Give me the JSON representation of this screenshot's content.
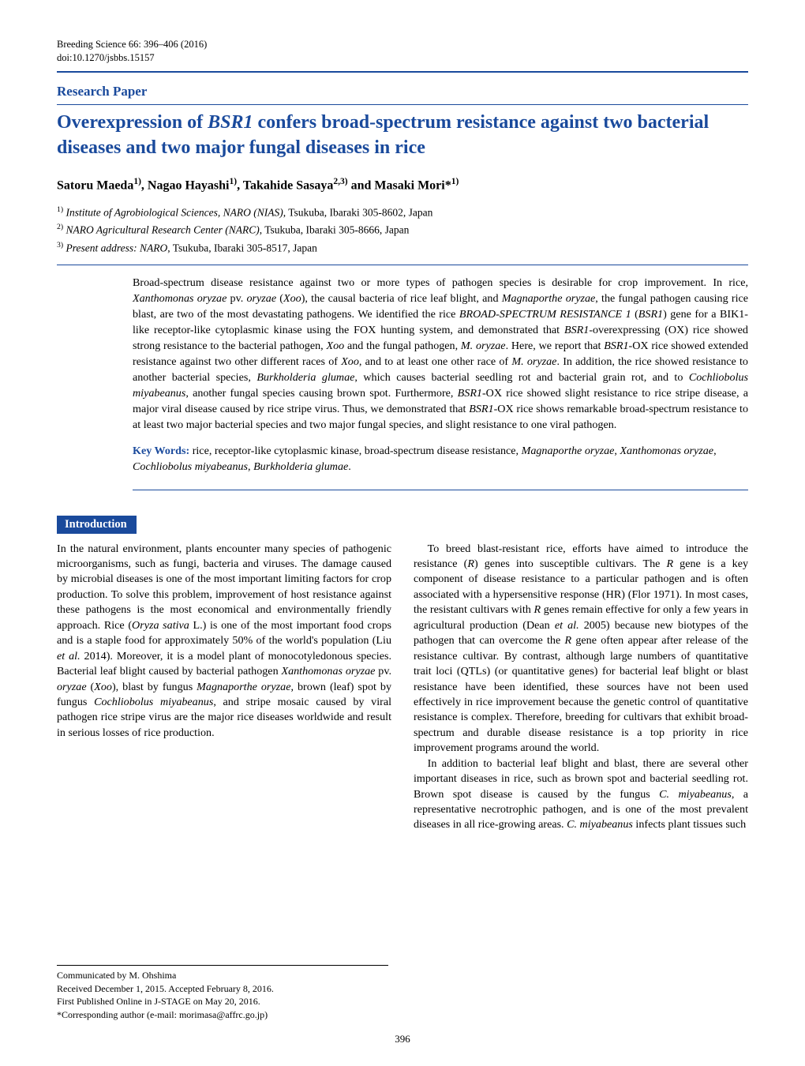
{
  "journal": {
    "line1": "Breeding Science 66: 396–406 (2016)",
    "line2": "doi:10.1270/jsbbs.15157"
  },
  "colors": {
    "accent": "#1a4a9c",
    "text": "#000000",
    "bg": "#ffffff"
  },
  "section_label": "Research Paper",
  "title": "Overexpression of <span class='ital'>BSR1</span> confers broad-spectrum resistance against two bacterial diseases and two major fungal diseases in rice",
  "authors_html": "Satoru Maeda<span class='sup'>1)</span>, Nagao Hayashi<span class='sup'>1)</span>, Takahide Sasaya<span class='sup'>2,3)</span> and Masaki Mori*<span class='sup'>1)</span>",
  "affiliations": [
    {
      "num": "1)",
      "italic": "Institute of Agrobiological Sciences, NARO (NIAS)",
      "plain": ", Tsukuba, Ibaraki 305-8602, Japan"
    },
    {
      "num": "2)",
      "italic": "NARO Agricultural Research Center (NARC)",
      "plain": ", Tsukuba, Ibaraki 305-8666, Japan"
    },
    {
      "num": "3)",
      "italic": "Present address: NARO",
      "plain": ", Tsukuba, Ibaraki 305-8517, Japan"
    }
  ],
  "abstract_html": "Broad-spectrum disease resistance against two or more types of pathogen species is desirable for crop improvement. In rice, <span class='ital'>Xanthomonas oryzae</span> pv. <span class='ital'>oryzae</span> (<span class='ital'>Xoo</span>), the causal bacteria of rice leaf blight, and <span class='ital'>Magnaporthe oryzae</span>, the fungal pathogen causing rice blast, are two of the most devastating pathogens. We identified the rice <span class='ital'>BROAD-SPECTRUM RESISTANCE 1</span> (<span class='ital'>BSR1</span>) gene for a BIK1-like receptor-like cytoplasmic kinase using the FOX hunting system, and demonstrated that <span class='ital'>BSR1</span>-overexpressing (OX) rice showed strong resistance to the bacterial pathogen, <span class='ital'>Xoo</span> and the fungal pathogen, <span class='ital'>M. oryzae</span>. Here, we report that <span class='ital'>BSR1</span>-OX rice showed extended resistance against two other different races of <span class='ital'>Xoo</span>, and to at least one other race of <span class='ital'>M. oryzae</span>. In addition, the rice showed resistance to another bacterial species, <span class='ital'>Burkholderia glumae</span>, which causes bacterial seedling rot and bacterial grain rot, and to <span class='ital'>Cochliobolus miyabeanus</span>, another fungal species causing brown spot. Furthermore, <span class='ital'>BSR1</span>-OX rice showed slight resistance to rice stripe disease, a major viral disease caused by rice stripe virus. Thus, we demonstrated that <span class='ital'>BSR1</span>-OX rice shows remarkable broad-spectrum resistance to at least two major bacterial species and two major fungal species, and slight resistance to one viral pathogen.",
  "keywords_label": "Key Words:",
  "keywords_html": "rice, receptor-like cytoplasmic kinase, broad-spectrum disease resistance, <span class='ital'>Magnaporthe oryzae</span>, <span class='ital'>Xanthomonas oryzae</span>, <span class='ital'>Cochliobolus miyabeanus</span>, <span class='ital'>Burkholderia glumae</span>.",
  "intro_heading": "Introduction",
  "cols": {
    "left": [
      "In the natural environment, plants encounter many species of pathogenic microorganisms, such as fungi, bacteria and viruses. The damage caused by microbial diseases is one of the most important limiting factors for crop production. To solve this problem, improvement of host resistance against these pathogens is the most economical and environmentally friendly approach. Rice (<span class='ital'>Oryza sativa</span> L.) is one of the most important food crops and is a staple food for approximately 50% of the world's population (Liu <span class='ital'>et al.</span> 2014). Moreover, it is a model plant of monocotyledonous species. Bacterial leaf blight caused by bacterial pathogen <span class='ital'>Xanthomonas oryzae</span> pv. <span class='ital'>oryzae</span> (<span class='ital'>Xoo</span>), blast by fungus <span class='ital'>Magnaporthe oryzae</span>, brown (leaf) spot by fungus <span class='ital'>Cochliobolus miyabeanus</span>, and stripe mosaic caused by viral pathogen rice stripe virus are the major rice diseases worldwide and result in serious losses of rice production."
    ],
    "right": [
      "To breed blast-resistant rice, efforts have aimed to introduce the resistance (<span class='ital'>R</span>) genes into susceptible cultivars. The <span class='ital'>R</span> gene is a key component of disease resistance to a particular pathogen and is often associated with a hypersensitive response (HR) (Flor 1971). In most cases, the resistant cultivars with <span class='ital'>R</span> genes remain effective for only a few years in agricultural production (Dean <span class='ital'>et al.</span> 2005) because new biotypes of the pathogen that can overcome the <span class='ital'>R</span> gene often appear after release of the resistance cultivar. By contrast, although large numbers of quantitative trait loci (QTLs) (or quantitative genes) for bacterial leaf blight or blast resistance have been identified, these sources have not been used effectively in rice improvement because the genetic control of quantitative resistance is complex. Therefore, breeding for cultivars that exhibit broad-spectrum and durable disease resistance is a top priority in rice improvement programs around the world.",
      "In addition to bacterial leaf blight and blast, there are several other important diseases in rice, such as brown spot and bacterial seedling rot. Brown spot disease is caused by the fungus <span class='ital'>C. miyabeanus</span>, a representative necrotrophic pathogen, and is one of the most prevalent diseases in all rice-growing areas. <span class='ital'>C. miyabeanus</span> infects plant tissues such"
    ]
  },
  "footnotes": [
    "Communicated by M. Ohshima",
    "Received December 1, 2015.  Accepted February 8, 2016.",
    "First Published Online in J-STAGE on May 20, 2016.",
    "*Corresponding author (e-mail:  morimasa@affrc.go.jp)"
  ],
  "page_number": "396",
  "typography": {
    "body_fontsize_pt": 10.5,
    "title_fontsize_pt": 18,
    "heading_color": "#1a4a9c"
  }
}
